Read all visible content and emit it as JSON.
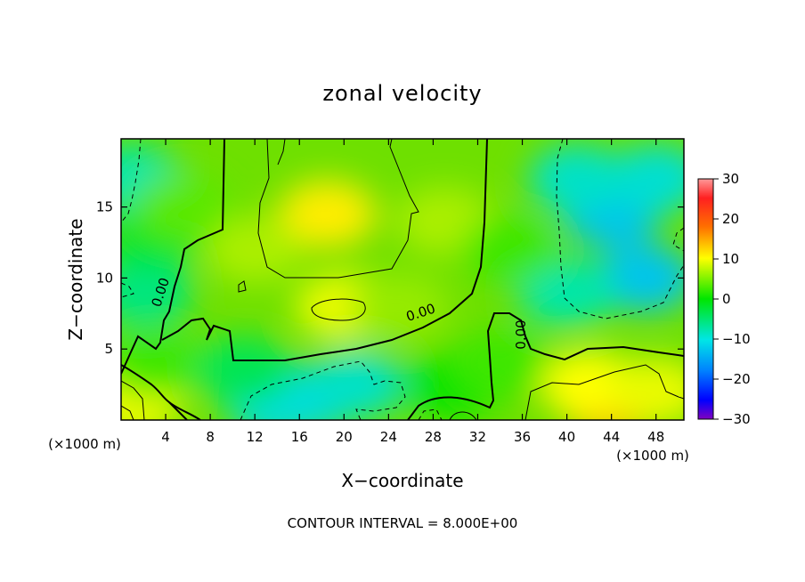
{
  "chart_data": {
    "type": "heatmap",
    "title": "zonal velocity",
    "xlabel": "X−coordinate",
    "ylabel": "Z−coordinate",
    "x_unit_left": "(×1000 m)",
    "x_unit_right": "(×1000 m)",
    "footer": "CONTOUR INTERVAL = 8.000E+00",
    "xlim": [
      0,
      50.5
    ],
    "ylim": [
      0,
      19.8
    ],
    "x_ticks": [
      4,
      8,
      12,
      16,
      20,
      24,
      28,
      32,
      36,
      40,
      44,
      48
    ],
    "y_ticks": [
      5,
      10,
      15
    ],
    "colorbar": {
      "range": [
        -30,
        30
      ],
      "ticks": [
        30,
        20,
        10,
        0,
        -10,
        -20,
        -30
      ],
      "tick_labels": [
        "30",
        "20",
        "10",
        "0",
        "−10",
        "−20",
        "−30"
      ]
    },
    "contour_labels": [
      "0.00",
      "0.00",
      "0.00"
    ],
    "field_centers": [
      {
        "x": 18.5,
        "y": 14.5,
        "value": 11
      },
      {
        "x": 20,
        "y": 8,
        "value": 9
      },
      {
        "x": 12,
        "y": 12,
        "value": 6
      },
      {
        "x": 25,
        "y": 8,
        "value": 5
      },
      {
        "x": 29,
        "y": 14,
        "value": 6
      },
      {
        "x": 44,
        "y": 1,
        "value": 14
      },
      {
        "x": 42,
        "y": 2.5,
        "value": 10
      },
      {
        "x": 48,
        "y": 2,
        "value": 9
      },
      {
        "x": 1,
        "y": 1,
        "value": 9
      },
      {
        "x": 3,
        "y": 4,
        "value": 2
      },
      {
        "x": 44,
        "y": 14.5,
        "value": -12
      },
      {
        "x": 47,
        "y": 10,
        "value": -12
      },
      {
        "x": 48,
        "y": 17,
        "value": -8
      },
      {
        "x": 41,
        "y": 17,
        "value": -7
      },
      {
        "x": 40,
        "y": 9,
        "value": -4
      },
      {
        "x": 17,
        "y": 1.5,
        "value": -11
      },
      {
        "x": 14,
        "y": 1,
        "value": -9
      },
      {
        "x": 21,
        "y": 2.5,
        "value": -7
      },
      {
        "x": 11,
        "y": 3.5,
        "value": -2
      },
      {
        "x": 30,
        "y": 2.5,
        "value": 0
      },
      {
        "x": 1,
        "y": 17,
        "value": -4
      },
      {
        "x": 2,
        "y": 9,
        "value": -3
      },
      {
        "x": 3,
        "y": 13,
        "value": -1
      },
      {
        "x": 5.5,
        "y": 15,
        "value": 3
      },
      {
        "x": 35,
        "y": 12,
        "value": 2
      },
      {
        "x": 34,
        "y": 4,
        "value": 2
      }
    ]
  }
}
